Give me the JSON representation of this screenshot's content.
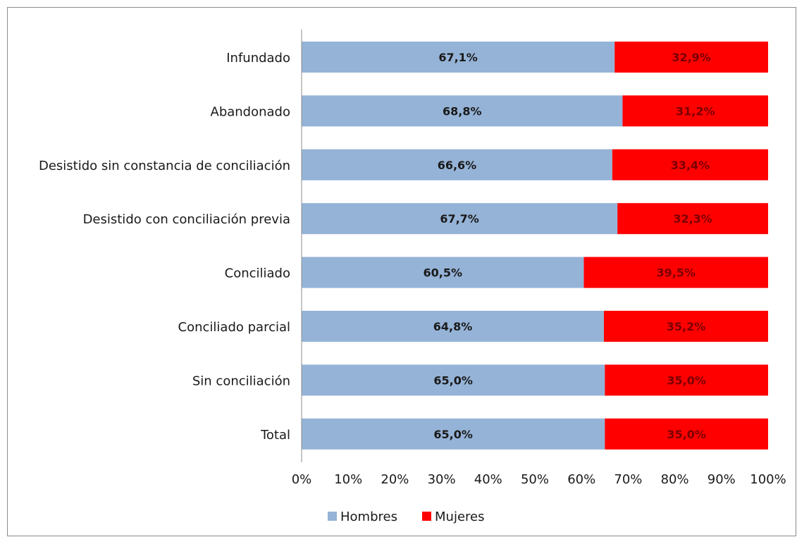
{
  "chart_data": {
    "type": "bar",
    "orientation": "horizontal",
    "stacked": "percent",
    "categories": [
      "Infundado",
      "Abandonado",
      "Desistido sin constancia de conciliación",
      "Desistido con conciliación previa",
      "Conciliado",
      "Conciliado parcial",
      "Sin conciliación",
      "Total"
    ],
    "series": [
      {
        "name": "Hombres",
        "color": "#95b3d7",
        "label_color": "#1a1a1a",
        "values": [
          67.1,
          68.8,
          66.6,
          67.7,
          60.5,
          64.8,
          65.0,
          65.0
        ],
        "labels": [
          "67,1%",
          "68,8%",
          "66,6%",
          "67,7%",
          "60,5%",
          "64,8%",
          "65,0%",
          "65,0%"
        ]
      },
      {
        "name": "Mujeres",
        "color": "#ff0000",
        "label_color": "#7a0000",
        "values": [
          32.9,
          31.2,
          33.4,
          32.3,
          39.5,
          35.2,
          35.0,
          35.0
        ],
        "labels": [
          "32,9%",
          "31,2%",
          "33,4%",
          "32,3%",
          "39,5%",
          "35,2%",
          "35,0%",
          "35,0%"
        ]
      }
    ],
    "xlim": [
      0,
      100
    ],
    "xticks": [
      0,
      10,
      20,
      30,
      40,
      50,
      60,
      70,
      80,
      90,
      100
    ],
    "xtick_labels": [
      "0%",
      "10%",
      "20%",
      "30%",
      "40%",
      "50%",
      "60%",
      "70%",
      "80%",
      "90%",
      "100%"
    ],
    "grid": false,
    "legend_position": "bottom"
  }
}
